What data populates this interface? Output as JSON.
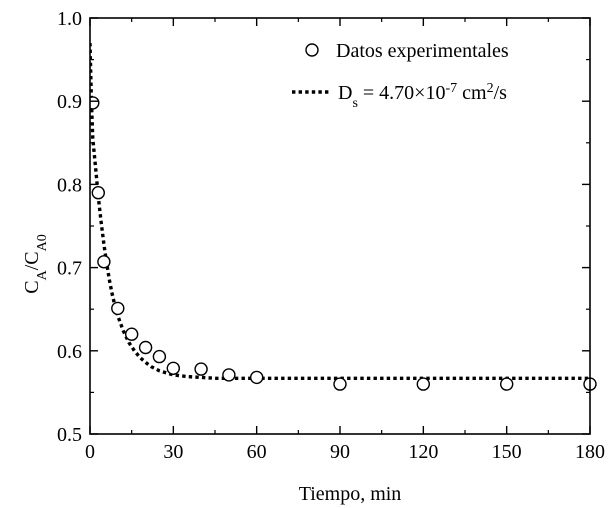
{
  "chart_data": {
    "type": "scatter",
    "title": "",
    "xlabel": "Tiempo, min",
    "ylabel": {
      "main": "C",
      "sub1": "A",
      "sep": "/C",
      "sub2": "A0"
    },
    "xlim": [
      0,
      180
    ],
    "ylim": [
      0.5,
      1.0
    ],
    "xticks": [
      "0",
      "30",
      "60",
      "90",
      "120",
      "150",
      "180"
    ],
    "yticks": [
      "0.5",
      "0.6",
      "0.7",
      "0.8",
      "0.9",
      "1.0"
    ],
    "grid": false,
    "legend_position": "top-right",
    "series": [
      {
        "name": "Datos experimentales",
        "kind": "markers",
        "marker": "open-circle",
        "x": [
          1,
          3,
          5,
          10,
          15,
          20,
          25,
          30,
          40,
          50,
          60,
          90,
          120,
          150,
          180
        ],
        "y": [
          0.898,
          0.79,
          0.707,
          0.651,
          0.62,
          0.604,
          0.593,
          0.579,
          0.578,
          0.571,
          0.568,
          0.56,
          0.56,
          0.56,
          0.56
        ]
      },
      {
        "name": "D_s = 4.70×10^-7 cm^2/s",
        "kind": "dotted-line",
        "x": [
          0,
          0.5,
          1,
          2,
          3,
          4,
          5,
          6,
          7,
          8,
          9,
          10,
          12,
          14,
          16,
          18,
          20,
          22,
          25,
          28,
          30,
          35,
          40,
          45,
          50,
          55,
          60,
          70,
          80,
          90,
          100,
          120,
          140,
          160,
          180
        ],
        "y": [
          0.97,
          0.9,
          0.855,
          0.82,
          0.785,
          0.755,
          0.728,
          0.705,
          0.685,
          0.668,
          0.654,
          0.642,
          0.624,
          0.61,
          0.6,
          0.592,
          0.586,
          0.581,
          0.576,
          0.573,
          0.571,
          0.569,
          0.568,
          0.567,
          0.567,
          0.567,
          0.567,
          0.567,
          0.567,
          0.567,
          0.567,
          0.567,
          0.567,
          0.567,
          0.567
        ]
      }
    ],
    "legend": {
      "markers_label": "Datos experimentales",
      "line_label": {
        "D": "D",
        "s": "s",
        "mid": " = 4.70×10",
        "exp": "-7",
        "unit": " cm",
        "unit_exp": "2",
        "tail": "/s"
      }
    }
  }
}
